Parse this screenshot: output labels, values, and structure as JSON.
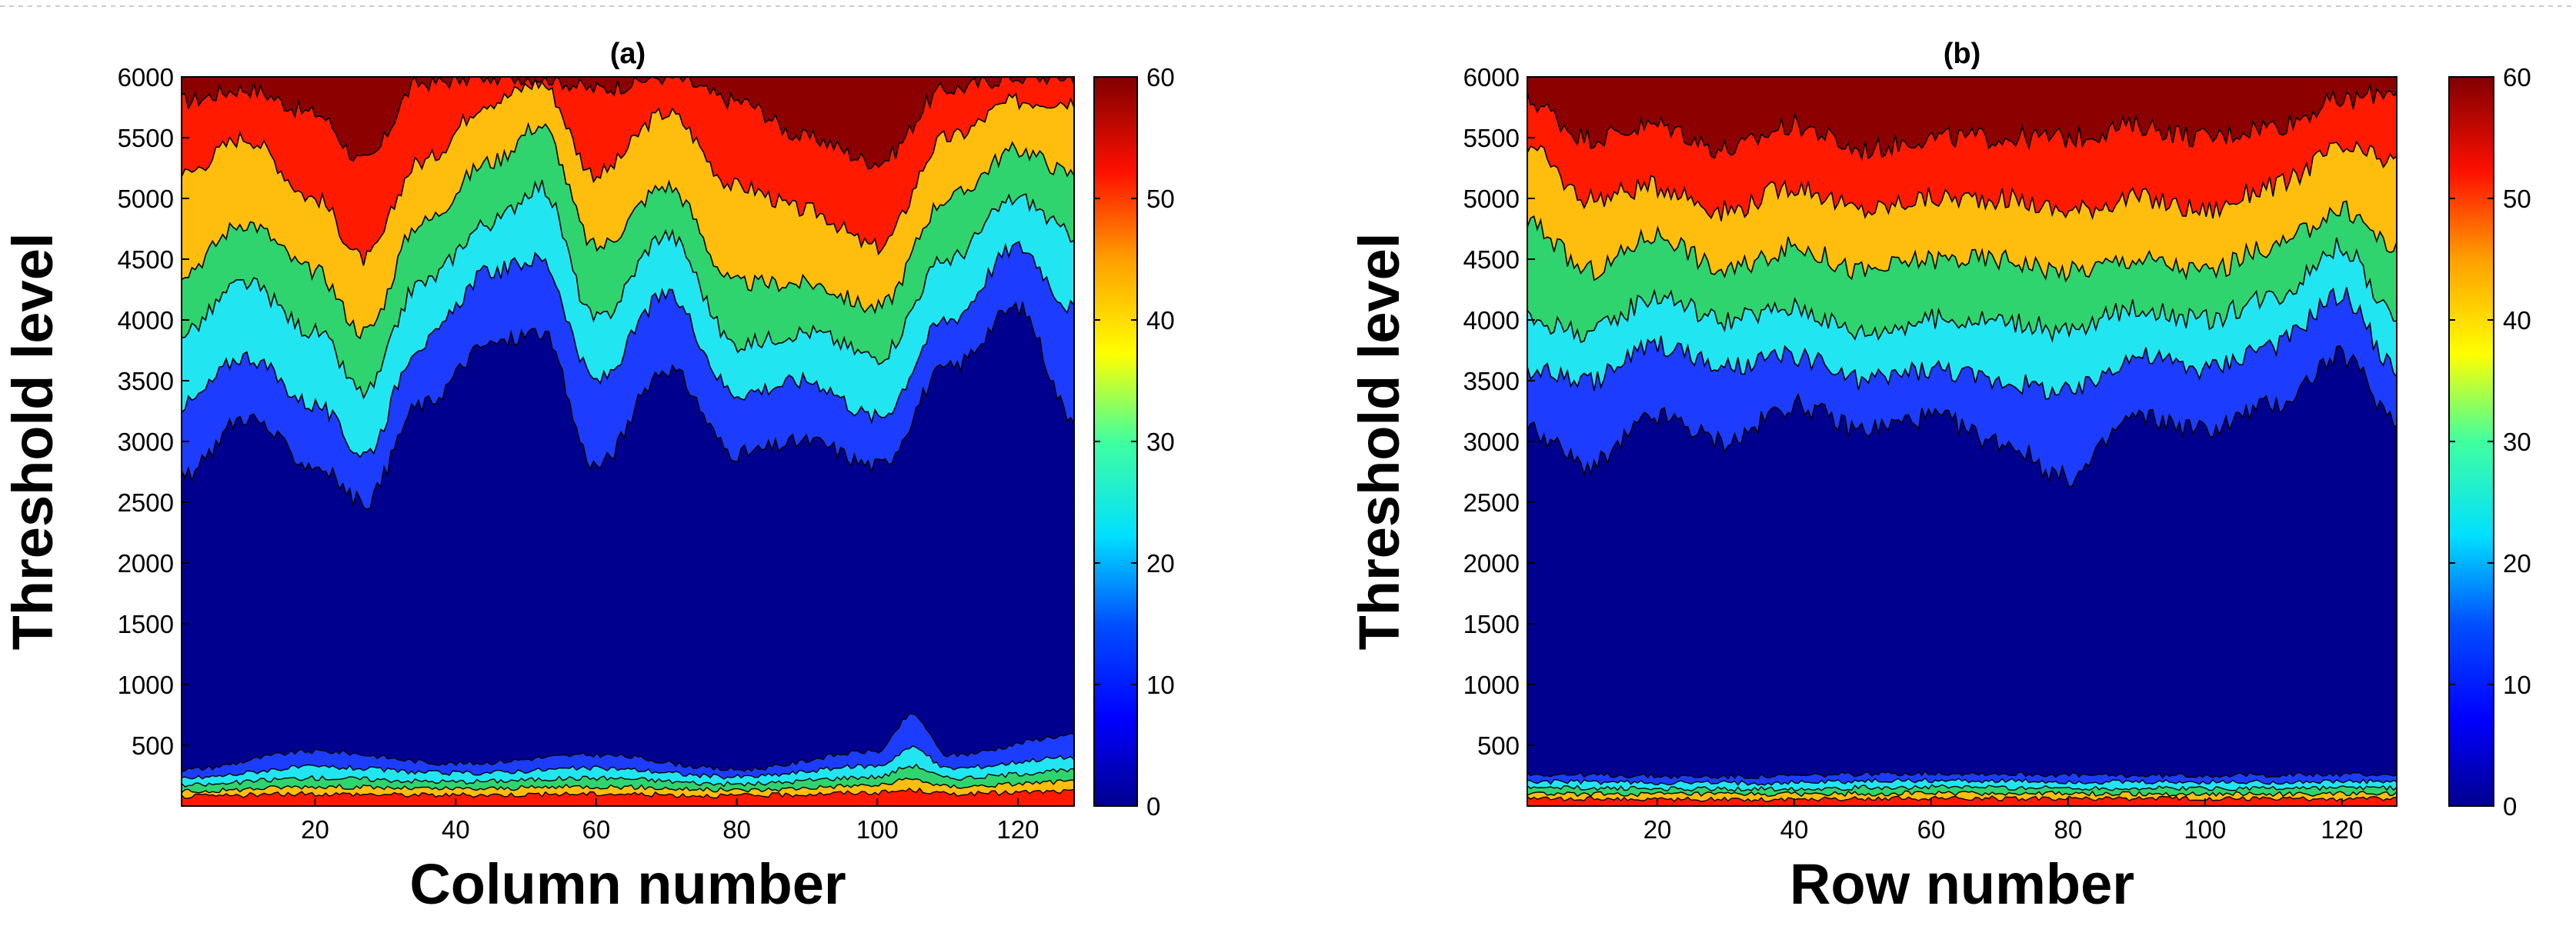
{
  "chart_data": [
    {
      "type": "contourf",
      "panel_label": "(a)",
      "title": "(a)",
      "xlabel": "Column number",
      "ylabel": "Threshold level",
      "xlim": [
        1,
        128
      ],
      "ylim": [
        0,
        6000
      ],
      "x_ticks": [
        "20",
        "40",
        "60",
        "80",
        "100",
        "120"
      ],
      "y_ticks": [
        "500",
        "1000",
        "1500",
        "2000",
        "2500",
        "3000",
        "3500",
        "4000",
        "4500",
        "5000",
        "5500",
        "6000"
      ],
      "colorbar": {
        "min": 0,
        "max": 60,
        "ticks": [
          "0",
          "10",
          "20",
          "30",
          "40",
          "50",
          "60"
        ]
      },
      "levels": [
        0,
        10,
        20,
        30,
        40,
        50,
        60
      ],
      "level_colors": [
        "#00008f",
        "#1c3dff",
        "#21e6f2",
        "#2fd46e",
        "#ffbe0d",
        "#ff1a00",
        "#8c0000"
      ],
      "contour_boundaries_upper": [
        {
          "level": 5,
          "x": [
            1,
            10,
            20,
            27,
            35,
            45,
            52,
            60,
            70,
            80,
            90,
            100,
            110,
            120,
            128
          ],
          "y": [
            2700,
            3200,
            2800,
            2500,
            3300,
            3800,
            3900,
            2800,
            3600,
            2900,
            3000,
            2800,
            3600,
            4100,
            3200
          ]
        },
        {
          "level": 15,
          "x": [
            1,
            10,
            20,
            27,
            35,
            45,
            52,
            60,
            70,
            80,
            90,
            100,
            110,
            120,
            128
          ],
          "y": [
            3300,
            3700,
            3300,
            2900,
            3800,
            4400,
            4500,
            3500,
            4200,
            3400,
            3500,
            3200,
            4000,
            4600,
            4100
          ]
        },
        {
          "level": 25,
          "x": [
            1,
            10,
            20,
            27,
            35,
            45,
            52,
            60,
            70,
            80,
            90,
            100,
            110,
            120,
            128
          ],
          "y": [
            3900,
            4300,
            3900,
            3400,
            4300,
            4800,
            5100,
            4000,
            4700,
            3800,
            3900,
            3700,
            4500,
            5000,
            4700
          ]
        },
        {
          "level": 35,
          "x": [
            1,
            10,
            20,
            27,
            35,
            45,
            52,
            60,
            70,
            80,
            90,
            100,
            110,
            120,
            128
          ],
          "y": [
            4400,
            4800,
            4400,
            3900,
            4800,
            5300,
            5600,
            4600,
            5100,
            4300,
            4300,
            4100,
            5000,
            5400,
            5200
          ]
        },
        {
          "level": 45,
          "x": [
            1,
            10,
            20,
            27,
            35,
            45,
            52,
            60,
            70,
            80,
            90,
            100,
            110,
            120,
            128
          ],
          "y": [
            5200,
            5500,
            5000,
            4500,
            5300,
            5800,
            5950,
            5200,
            5700,
            5100,
            4900,
            4600,
            5500,
            5800,
            5800
          ]
        },
        {
          "level": 55,
          "x": [
            1,
            10,
            20,
            27,
            35,
            45,
            52,
            60,
            70,
            80,
            90,
            100,
            110,
            120,
            128
          ],
          "y": [
            5800,
            5900,
            5700,
            5300,
            5950,
            6000,
            6000,
            5900,
            6000,
            5800,
            5500,
            5300,
            5900,
            6000,
            6000
          ]
        }
      ],
      "contour_boundaries_lower": [
        {
          "level": 5,
          "x": [
            1,
            20,
            40,
            60,
            80,
            100,
            105,
            110,
            128
          ],
          "y": [
            300,
            450,
            350,
            420,
            300,
            450,
            750,
            420,
            580
          ]
        },
        {
          "level": 15,
          "x": [
            1,
            20,
            40,
            60,
            80,
            100,
            105,
            110,
            128
          ],
          "y": [
            230,
            320,
            270,
            310,
            240,
            330,
            480,
            310,
            400
          ]
        },
        {
          "level": 25,
          "x": [
            1,
            20,
            40,
            60,
            80,
            100,
            105,
            110,
            128
          ],
          "y": [
            170,
            230,
            200,
            230,
            180,
            240,
            330,
            230,
            290
          ]
        },
        {
          "level": 35,
          "x": [
            1,
            20,
            40,
            60,
            80,
            100,
            105,
            110,
            128
          ],
          "y": [
            120,
            160,
            140,
            160,
            130,
            170,
            220,
            160,
            200
          ]
        },
        {
          "level": 45,
          "x": [
            1,
            20,
            40,
            60,
            80,
            100,
            105,
            110,
            128
          ],
          "y": [
            80,
            100,
            90,
            100,
            85,
            110,
            130,
            100,
            120
          ]
        }
      ]
    },
    {
      "type": "contourf",
      "panel_label": "(b)",
      "title": "(b)",
      "xlabel": "Row number",
      "ylabel": "Threshold level",
      "xlim": [
        1,
        128
      ],
      "ylim": [
        0,
        6000
      ],
      "x_ticks": [
        "20",
        "40",
        "60",
        "80",
        "100",
        "120"
      ],
      "y_ticks": [
        "500",
        "1000",
        "1500",
        "2000",
        "2500",
        "3000",
        "3500",
        "4000",
        "4500",
        "5000",
        "5500",
        "6000"
      ],
      "colorbar": {
        "min": 0,
        "max": 60,
        "ticks": [
          "0",
          "10",
          "20",
          "30",
          "40",
          "50",
          "60"
        ]
      },
      "levels": [
        0,
        10,
        20,
        30,
        40,
        50,
        60
      ],
      "level_colors": [
        "#00008f",
        "#1c3dff",
        "#21e6f2",
        "#2fd46e",
        "#ffbe0d",
        "#ff1a00",
        "#8c0000"
      ],
      "contour_boundaries_upper": [
        {
          "level": 5,
          "x": [
            1,
            10,
            20,
            30,
            40,
            50,
            60,
            70,
            80,
            90,
            100,
            110,
            120,
            128
          ],
          "y": [
            3100,
            2800,
            3200,
            3000,
            3300,
            3100,
            3200,
            3000,
            2700,
            3200,
            3100,
            3300,
            3700,
            3200
          ]
        },
        {
          "level": 15,
          "x": [
            1,
            10,
            20,
            30,
            40,
            50,
            60,
            70,
            80,
            90,
            100,
            110,
            120,
            128
          ],
          "y": [
            3600,
            3500,
            3800,
            3600,
            3700,
            3500,
            3600,
            3500,
            3400,
            3700,
            3600,
            3800,
            4200,
            3600
          ]
        },
        {
          "level": 25,
          "x": [
            1,
            10,
            20,
            30,
            40,
            50,
            60,
            70,
            80,
            90,
            100,
            110,
            120,
            128
          ],
          "y": [
            4000,
            3900,
            4200,
            4000,
            4100,
            3900,
            4000,
            4000,
            3900,
            4100,
            4000,
            4200,
            4600,
            4000
          ]
        },
        {
          "level": 35,
          "x": [
            1,
            10,
            20,
            30,
            40,
            50,
            60,
            70,
            80,
            90,
            100,
            110,
            120,
            128
          ],
          "y": [
            4800,
            4400,
            4700,
            4400,
            4600,
            4400,
            4500,
            4500,
            4400,
            4500,
            4400,
            4600,
            4900,
            4600
          ]
        },
        {
          "level": 45,
          "x": [
            1,
            10,
            20,
            30,
            40,
            50,
            60,
            70,
            80,
            90,
            100,
            110,
            120,
            128
          ],
          "y": [
            5400,
            5000,
            5100,
            4900,
            5100,
            4900,
            5000,
            5000,
            4900,
            5000,
            4900,
            5100,
            5400,
            5300
          ]
        },
        {
          "level": 55,
          "x": [
            1,
            10,
            20,
            30,
            40,
            50,
            60,
            70,
            80,
            90,
            100,
            110,
            120,
            128
          ],
          "y": [
            5800,
            5500,
            5600,
            5400,
            5600,
            5400,
            5500,
            5500,
            5500,
            5600,
            5500,
            5600,
            5800,
            5900
          ]
        }
      ],
      "contour_boundaries_lower": [
        {
          "level": 5,
          "x": [
            1,
            30,
            60,
            90,
            128
          ],
          "y": [
            260,
            240,
            270,
            250,
            260
          ]
        },
        {
          "level": 15,
          "x": [
            1,
            30,
            60,
            90,
            128
          ],
          "y": [
            200,
            190,
            210,
            195,
            200
          ]
        },
        {
          "level": 25,
          "x": [
            1,
            30,
            60,
            90,
            128
          ],
          "y": [
            150,
            140,
            155,
            145,
            150
          ]
        },
        {
          "level": 35,
          "x": [
            1,
            30,
            60,
            90,
            128
          ],
          "y": [
            100,
            95,
            105,
            100,
            100
          ]
        },
        {
          "level": 45,
          "x": [
            1,
            30,
            60,
            90,
            128
          ],
          "y": [
            60,
            55,
            65,
            60,
            60
          ]
        }
      ]
    }
  ]
}
